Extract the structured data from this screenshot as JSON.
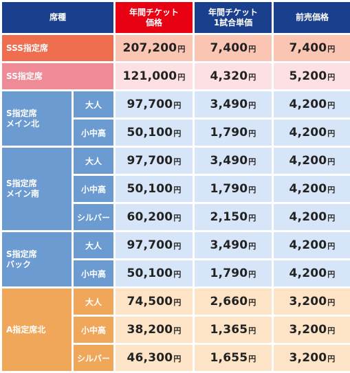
{
  "header": {
    "seat": "席種",
    "annual_price": [
      "年間チケット",
      "価格"
    ],
    "per_game": [
      "年間チケット",
      "1試合単価"
    ],
    "presale": "前売価格"
  },
  "yen": "円",
  "sss": {
    "seat": "SSS指定席",
    "annual": "207,200",
    "per_game": "7,400",
    "presale": "7,400"
  },
  "ss": {
    "seat": "SS指定席",
    "annual": "121,000",
    "per_game": "4,320",
    "presale": "5,200"
  },
  "s_main_north": {
    "seat": [
      "S指定席",
      "メイン北"
    ],
    "rows": [
      {
        "cat": "大人",
        "annual": "97,700",
        "per_game": "3,490",
        "presale": "4,200"
      },
      {
        "cat": "小中高",
        "annual": "50,100",
        "per_game": "1,790",
        "presale": "4,200"
      }
    ]
  },
  "s_main_south": {
    "seat": [
      "S指定席",
      "メイン南"
    ],
    "rows": [
      {
        "cat": "大人",
        "annual": "97,700",
        "per_game": "3,490",
        "presale": "4,200"
      },
      {
        "cat": "小中高",
        "annual": "50,100",
        "per_game": "1,790",
        "presale": "4,200"
      },
      {
        "cat": "シルバー",
        "annual": "60,200",
        "per_game": "2,150",
        "presale": "4,200"
      }
    ]
  },
  "s_back": {
    "seat": [
      "S指定席",
      "バック"
    ],
    "rows": [
      {
        "cat": "大人",
        "annual": "97,700",
        "per_game": "3,490",
        "presale": "4,200"
      },
      {
        "cat": "小中高",
        "annual": "50,100",
        "per_game": "1,790",
        "presale": "4,200"
      }
    ]
  },
  "a_north": {
    "seat": "A指定席北",
    "rows": [
      {
        "cat": "大人",
        "annual": "74,500",
        "per_game": "2,660",
        "presale": "3,200"
      },
      {
        "cat": "小中高",
        "annual": "38,200",
        "per_game": "1,365",
        "presale": "3,200"
      },
      {
        "cat": "シルバー",
        "annual": "46,300",
        "per_game": "1,655",
        "presale": "3,200"
      }
    ]
  },
  "colors": {
    "header_bg": "#1a3f8c",
    "header_highlight": "#e60012",
    "sss": "#ee6e4f",
    "ss": "#ef8b96",
    "s_blue": "#6b9bd1",
    "a_orange": "#f1a75a"
  }
}
